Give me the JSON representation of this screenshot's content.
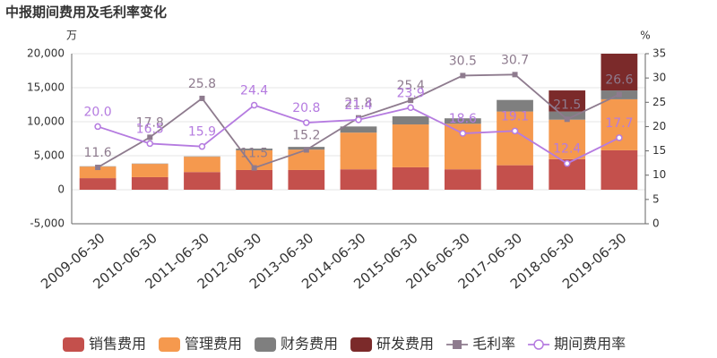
{
  "chart_data": {
    "type": "combo",
    "title": "中报期间费用及毛利率变化",
    "y_unit": "万",
    "y2_unit": "%",
    "categories": [
      "2009-06-30",
      "2010-06-30",
      "2011-06-30",
      "2012-06-30",
      "2013-06-30",
      "2014-06-30",
      "2015-06-30",
      "2016-06-30",
      "2017-06-30",
      "2018-06-30",
      "2019-06-30"
    ],
    "ylim": [
      -5000,
      20000
    ],
    "yticks": [
      {
        "value": -5000,
        "label": "-5,000"
      },
      0,
      {
        "value": 5000,
        "label": "5,000"
      },
      {
        "value": 10000,
        "label": "10,000"
      },
      {
        "value": 15000,
        "label": "15,000"
      },
      {
        "value": 20000,
        "label": "20,000"
      }
    ],
    "y2lim": [
      0,
      35
    ],
    "y2ticks": [
      0,
      5,
      10,
      15,
      20,
      25,
      30,
      35
    ],
    "grid": true,
    "legend": "bottom",
    "series": [
      {
        "name": "销售费用",
        "type": "bar",
        "color": "#c4504c",
        "values": [
          1700,
          1850,
          2600,
          2900,
          2900,
          3000,
          3300,
          3000,
          3600,
          4500,
          5800
        ]
      },
      {
        "name": "管理费用",
        "type": "bar",
        "color": "#f5994e",
        "values": [
          1700,
          1950,
          2250,
          2900,
          3000,
          5400,
          6300,
          6700,
          7900,
          5800,
          7500
        ]
      },
      {
        "name": "财务费用",
        "type": "bar",
        "color": "#7f7f7f",
        "values": [
          50,
          50,
          50,
          250,
          400,
          900,
          1200,
          800,
          1700,
          1200,
          1300
        ]
      },
      {
        "name": "研发费用",
        "type": "bar",
        "color": "#7b2a2a",
        "values": [
          0,
          0,
          0,
          0,
          0,
          0,
          0,
          0,
          0,
          3100,
          5400
        ]
      },
      {
        "name": "毛利率",
        "type": "line",
        "axis": "y2",
        "marker": "square",
        "color": "#8e7b8e",
        "values": [
          11.6,
          17.8,
          25.8,
          11.5,
          15.2,
          21.8,
          25.4,
          30.5,
          30.7,
          21.5,
          26.6
        ],
        "value_labels": [
          "11.6",
          "17.8",
          "25.8",
          "11.5",
          "15.2",
          "21.8",
          "25.4",
          "30.5",
          "30.7",
          "21.5",
          "26.6"
        ]
      },
      {
        "name": "期间费用率",
        "type": "line",
        "axis": "y2",
        "marker": "circle",
        "color": "#b57be0",
        "values": [
          20.0,
          16.5,
          15.9,
          24.4,
          20.8,
          21.4,
          23.9,
          18.6,
          19.1,
          12.4,
          17.7
        ],
        "value_labels": [
          "20.0",
          "16.5",
          "15.9",
          "24.4",
          "20.8",
          "21.4",
          "23.9",
          "18.6",
          "19.1",
          "12.4",
          "17.7"
        ]
      }
    ]
  }
}
